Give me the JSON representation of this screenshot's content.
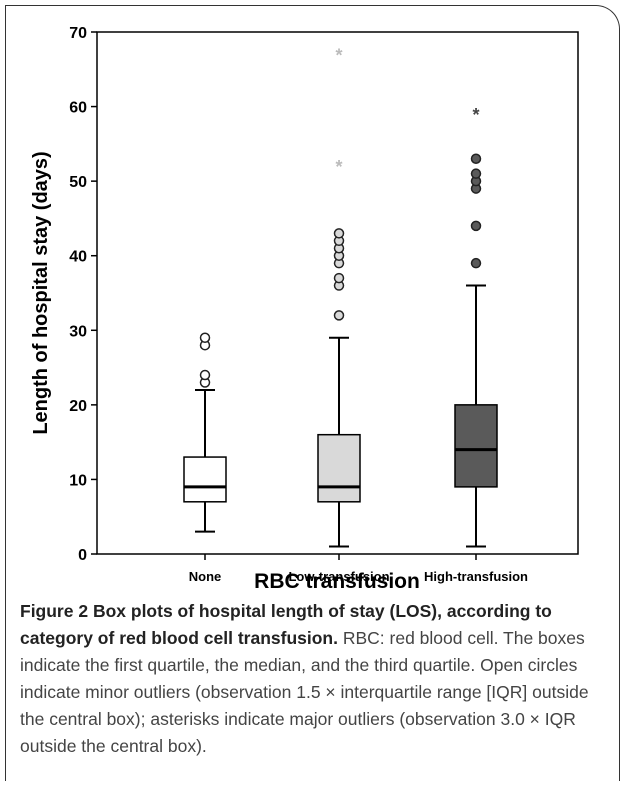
{
  "chart_data": {
    "type": "box",
    "xlabel": "RBC transfusion",
    "ylabel": "Length of hospital stay (days)",
    "ylim": [
      0,
      70
    ],
    "yticks": [
      0,
      10,
      20,
      30,
      40,
      50,
      60,
      70
    ],
    "categories": [
      "None",
      "Low-transfusion",
      "High-transfusion"
    ],
    "colors": [
      "#ffffff",
      "#d9d9d9",
      "#5a5a5a"
    ],
    "boxes": [
      {
        "category": "None",
        "whisker_low": 3,
        "q1": 7,
        "median": 9,
        "q3": 13,
        "whisker_high": 22,
        "minor_outliers": [
          23,
          24,
          28,
          29
        ],
        "major_outliers": []
      },
      {
        "category": "Low-transfusion",
        "whisker_low": 1,
        "q1": 7,
        "median": 9,
        "q3": 16,
        "whisker_high": 29,
        "minor_outliers": [
          32,
          36,
          37,
          39,
          40,
          41,
          42,
          43
        ],
        "major_outliers": [
          52,
          67
        ]
      },
      {
        "category": "High-transfusion",
        "whisker_low": 1,
        "q1": 9,
        "median": 14,
        "q3": 20,
        "whisker_high": 36,
        "minor_outliers": [
          39,
          44,
          49,
          50,
          51,
          53
        ],
        "major_outliers": [
          59
        ]
      }
    ]
  },
  "caption": {
    "label": "Figure 2",
    "title": "Box plots of hospital length of stay (LOS), according to category of red blood cell transfusion.",
    "body": "RBC: red blood cell. The boxes indicate the first quartile, the median, and the third quartile. Open circles indicate minor outliers (observation 1.5 × interquartile range [IQR] outside the central box); asterisks indicate major outliers (observation 3.0 × IQR outside the central box)."
  }
}
